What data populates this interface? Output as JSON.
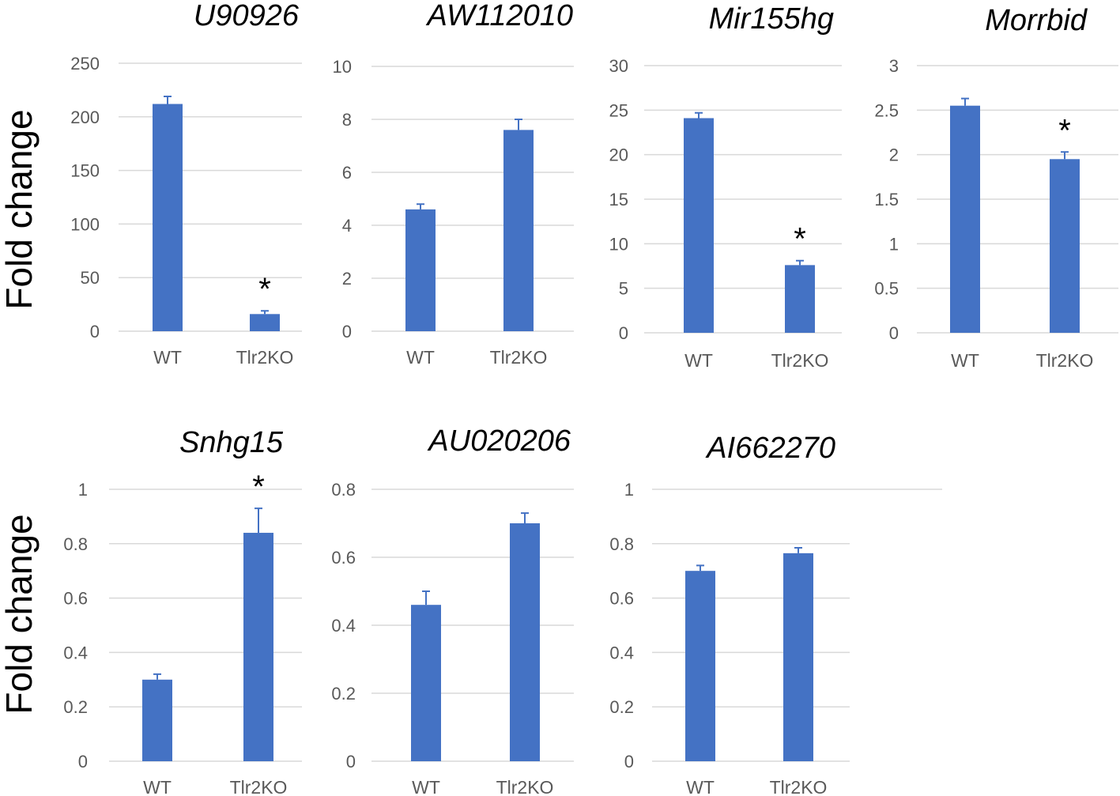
{
  "figure": {
    "y_axis_label_top": "Fold change",
    "y_axis_label_bottom": "Fold change",
    "bar_color": "#4472c4",
    "grid_color": "#d9d9d9"
  },
  "chart_data": [
    {
      "type": "bar",
      "title": "U90926",
      "categories": [
        "WT",
        "Tlr2KO"
      ],
      "values": [
        212,
        16
      ],
      "errors": [
        7,
        3
      ],
      "significance": [
        "",
        "*"
      ],
      "ylim": [
        0,
        250
      ],
      "yticks": [
        0,
        50,
        100,
        150,
        200,
        250
      ],
      "ytick_labels": [
        "0",
        "50",
        "100",
        "150",
        "200",
        "250"
      ],
      "ylabel": "Fold change"
    },
    {
      "type": "bar",
      "title": "AW112010",
      "categories": [
        "WT",
        "Tlr2KO"
      ],
      "values": [
        4.6,
        7.6
      ],
      "errors": [
        0.2,
        0.4
      ],
      "significance": [
        "",
        ""
      ],
      "ylim": [
        0,
        10
      ],
      "yticks": [
        0,
        2,
        4,
        6,
        8,
        10
      ],
      "ytick_labels": [
        "0",
        "2",
        "4",
        "6",
        "8",
        "10"
      ],
      "ylabel": ""
    },
    {
      "type": "bar",
      "title": "Mir155hg",
      "categories": [
        "WT",
        "Tlr2KO"
      ],
      "values": [
        24.1,
        7.6
      ],
      "errors": [
        0.6,
        0.5
      ],
      "significance": [
        "",
        "*"
      ],
      "ylim": [
        0,
        30
      ],
      "yticks": [
        0,
        5,
        10,
        15,
        20,
        25,
        30
      ],
      "ytick_labels": [
        "0",
        "5",
        "10",
        "15",
        "20",
        "25",
        "30"
      ],
      "ylabel": ""
    },
    {
      "type": "bar",
      "title": "Morrbid",
      "categories": [
        "WT",
        "Tlr2KO"
      ],
      "values": [
        2.55,
        1.95
      ],
      "errors": [
        0.08,
        0.08
      ],
      "significance": [
        "",
        "*"
      ],
      "ylim": [
        0,
        3
      ],
      "yticks": [
        0,
        0.5,
        1,
        1.5,
        2,
        2.5,
        3
      ],
      "ytick_labels": [
        "0",
        "0.5",
        "1",
        "1.5",
        "2",
        "2.5",
        "3"
      ],
      "ylabel": ""
    },
    {
      "type": "bar",
      "title": "Snhg15",
      "categories": [
        "WT",
        "Tlr2KO"
      ],
      "values": [
        0.3,
        0.84
      ],
      "errors": [
        0.02,
        0.09
      ],
      "significance": [
        "",
        "*"
      ],
      "ylim": [
        0,
        1
      ],
      "yticks": [
        0,
        0.2,
        0.4,
        0.6,
        0.8,
        1
      ],
      "ytick_labels": [
        "0",
        "0.2",
        "0.4",
        "0.6",
        "0.8",
        "1"
      ],
      "ylabel": "Fold change"
    },
    {
      "type": "bar",
      "title": "AU020206",
      "categories": [
        "WT",
        "Tlr2KO"
      ],
      "values": [
        0.46,
        0.7
      ],
      "errors": [
        0.04,
        0.03
      ],
      "significance": [
        "",
        ""
      ],
      "ylim": [
        0,
        0.8
      ],
      "yticks": [
        0,
        0.2,
        0.4,
        0.6,
        0.8
      ],
      "ytick_labels": [
        "0",
        "0.2",
        "0.4",
        "0.6",
        "0.8"
      ],
      "ylabel": ""
    },
    {
      "type": "bar",
      "title": "AI662270",
      "categories": [
        "WT",
        "Tlr2KO"
      ],
      "values": [
        0.7,
        0.765
      ],
      "errors": [
        0.02,
        0.02
      ],
      "significance": [
        "",
        ""
      ],
      "ylim": [
        0,
        1
      ],
      "yticks": [
        0,
        0.2,
        0.4,
        0.6,
        0.8,
        1
      ],
      "ytick_labels": [
        "0",
        "0.2",
        "0.4",
        "0.6",
        "0.8",
        "1"
      ],
      "ylabel": ""
    }
  ]
}
